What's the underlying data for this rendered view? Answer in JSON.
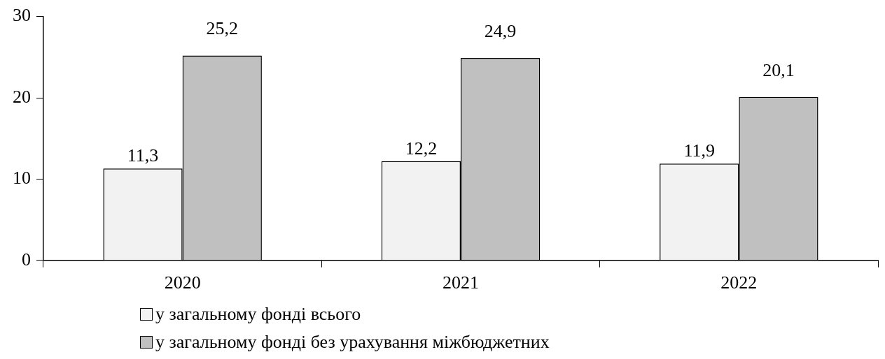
{
  "chart_data": {
    "type": "bar",
    "categories": [
      "2020",
      "2021",
      "2022"
    ],
    "series": [
      {
        "name": "у загальному фонді всього",
        "color": "#f2f2f2",
        "values": [
          11.3,
          12.2,
          11.9
        ],
        "value_labels": [
          "11,3",
          "12,2",
          "11,9"
        ]
      },
      {
        "name": "у загальному фонді без урахування міжбюджетних",
        "color": "#c0c0c0",
        "values": [
          25.2,
          24.9,
          20.1
        ],
        "value_labels": [
          "25,2",
          "24,9",
          "20,1"
        ]
      }
    ],
    "ylim": [
      0,
      30
    ],
    "yticks": [
      0,
      10,
      20,
      30
    ],
    "grid": false,
    "legend": "bottom"
  }
}
